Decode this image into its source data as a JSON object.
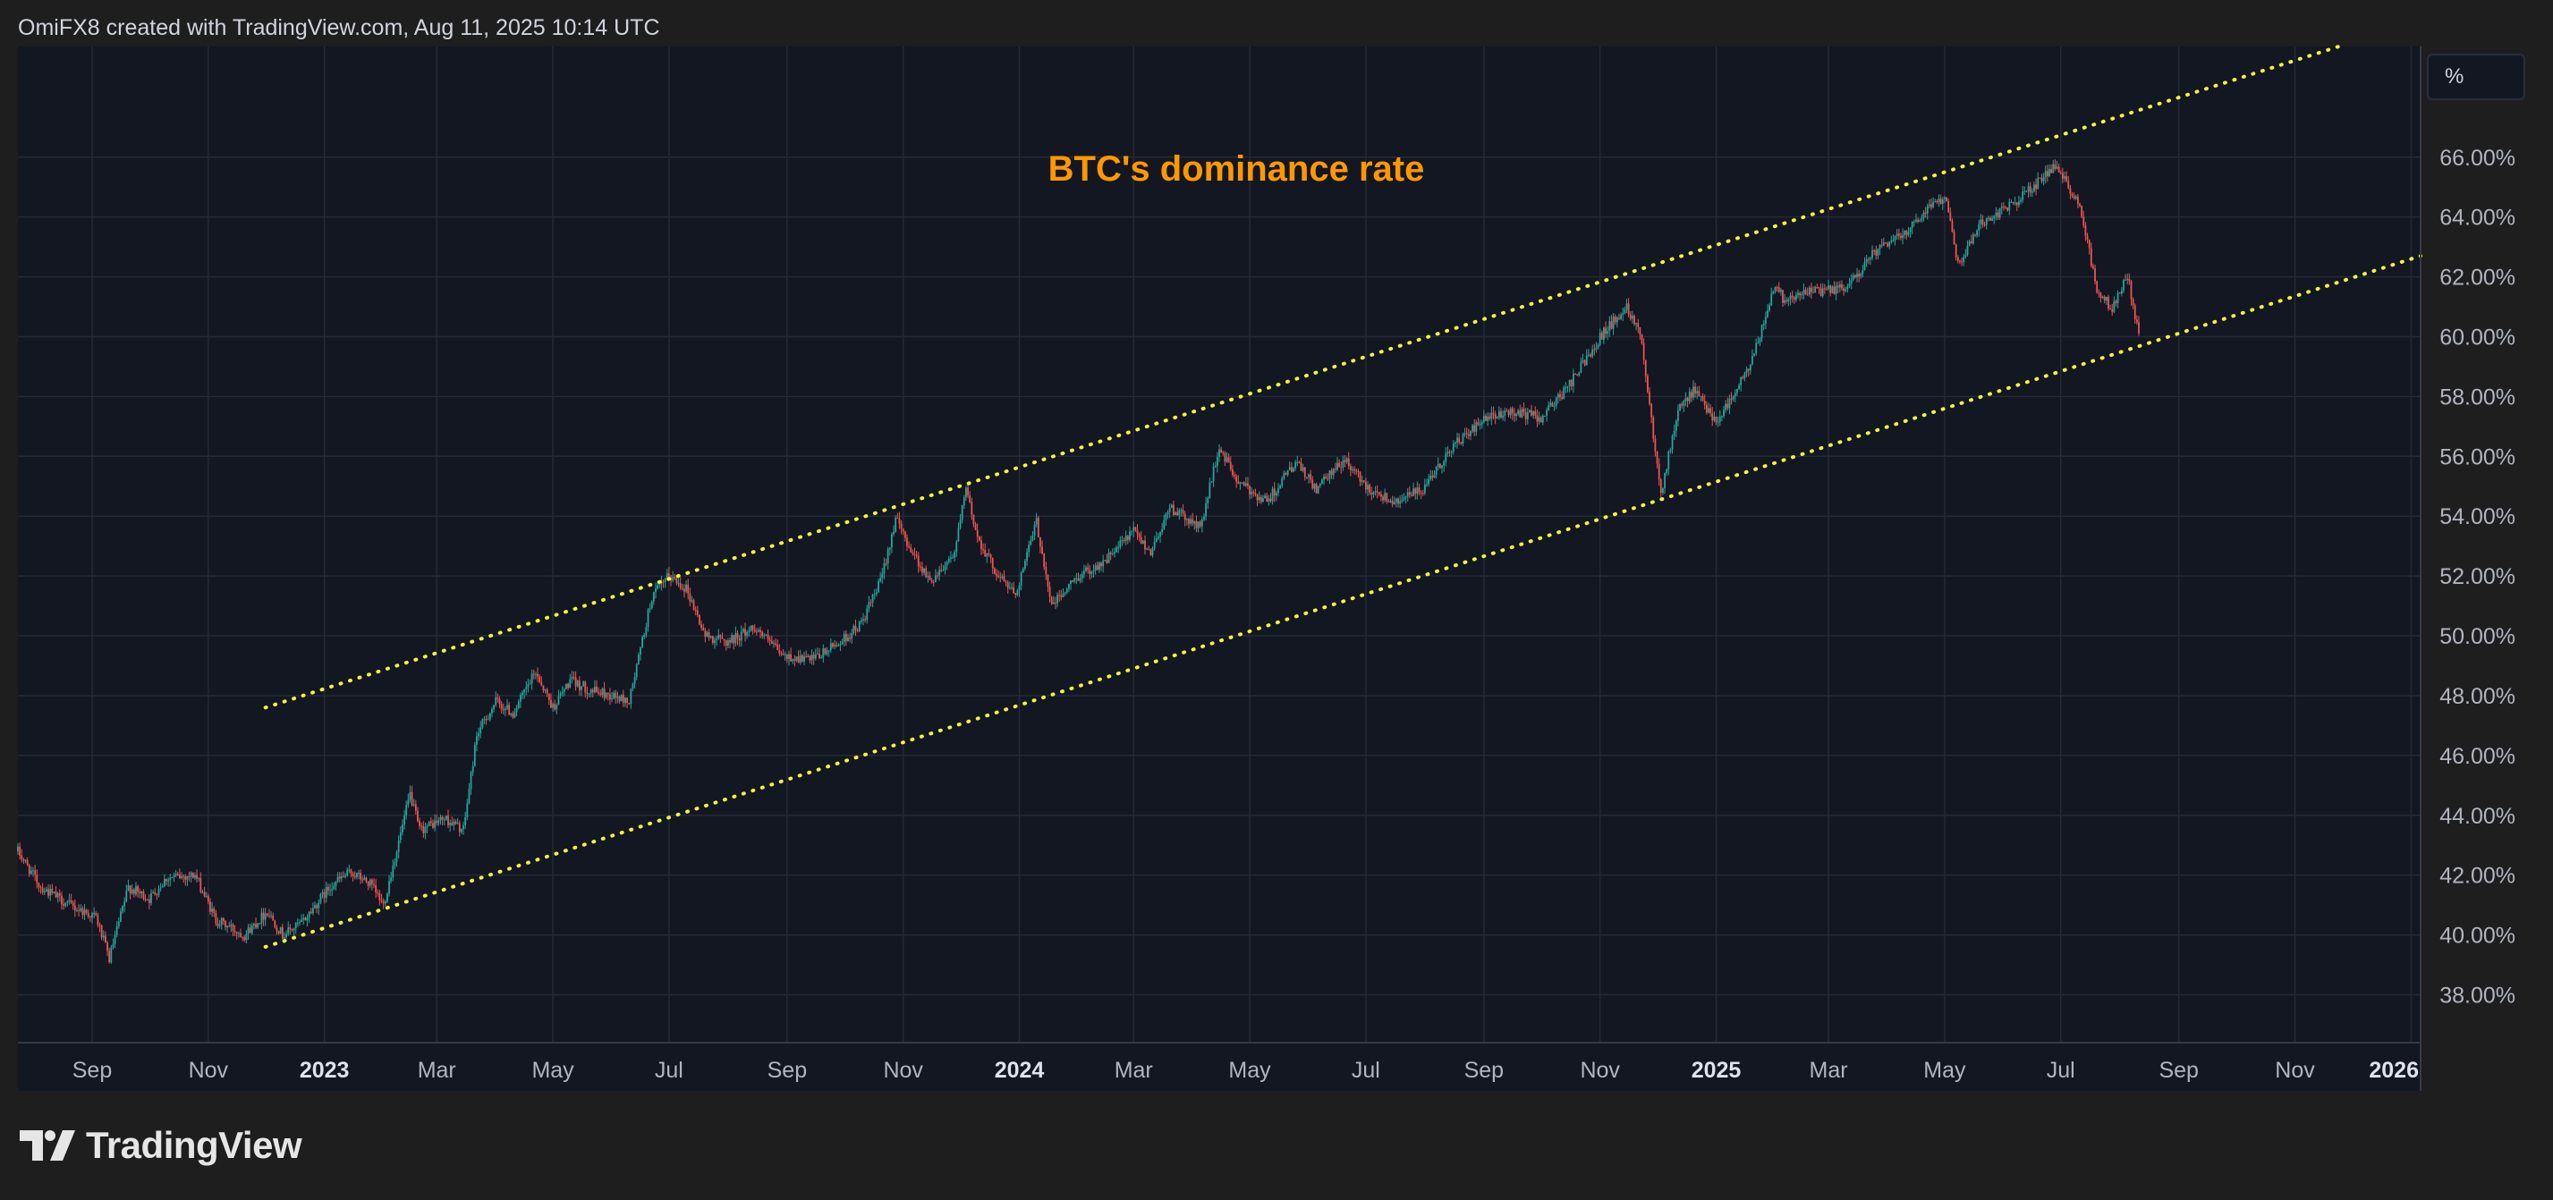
{
  "header": {
    "attribution": "OmiFX8 created with TradingView.com, Aug 11, 2025 10:14 UTC"
  },
  "toolbar": {
    "unit_label": "%"
  },
  "brand": {
    "name": "TradingView",
    "logo_icon": "tradingview-logo-icon"
  },
  "colors": {
    "background": "#1e1e1f",
    "plot_background": "#131722",
    "grid": "#252a36",
    "axis_text": "#b2b5be",
    "title": "#ff9800",
    "bullish_candle": "#26a69a",
    "bearish_candle": "#ef5350",
    "trendline": "#f5f53b"
  },
  "chart_data": {
    "type": "candlestick",
    "title": "BTC's dominance rate",
    "xlabel": "",
    "ylabel": "",
    "y_scale": "linear",
    "y_unit": "%",
    "ylim": [
      36.4,
      69.7
    ],
    "xlim": [
      "2022-07-24",
      "2026-01-06"
    ],
    "grid": true,
    "y_ticks": [
      "38.00%",
      "40.00%",
      "42.00%",
      "44.00%",
      "46.00%",
      "48.00%",
      "50.00%",
      "52.00%",
      "54.00%",
      "56.00%",
      "58.00%",
      "60.00%",
      "62.00%",
      "64.00%",
      "66.00%"
    ],
    "y_tick_values": [
      38,
      40,
      42,
      44,
      46,
      48,
      50,
      52,
      54,
      56,
      58,
      60,
      62,
      64,
      66
    ],
    "x_ticks": [
      {
        "label": "Sep",
        "date": "2022-09-01",
        "major": false
      },
      {
        "label": "Nov",
        "date": "2022-11-01",
        "major": false
      },
      {
        "label": "2023",
        "date": "2023-01-01",
        "major": true
      },
      {
        "label": "Mar",
        "date": "2023-03-01",
        "major": false
      },
      {
        "label": "May",
        "date": "2023-05-01",
        "major": false
      },
      {
        "label": "Jul",
        "date": "2023-07-01",
        "major": false
      },
      {
        "label": "Sep",
        "date": "2023-09-01",
        "major": false
      },
      {
        "label": "Nov",
        "date": "2023-11-01",
        "major": false
      },
      {
        "label": "2024",
        "date": "2024-01-01",
        "major": true
      },
      {
        "label": "Mar",
        "date": "2024-03-01",
        "major": false
      },
      {
        "label": "May",
        "date": "2024-05-01",
        "major": false
      },
      {
        "label": "Jul",
        "date": "2024-07-01",
        "major": false
      },
      {
        "label": "Sep",
        "date": "2024-09-01",
        "major": false
      },
      {
        "label": "Nov",
        "date": "2024-11-01",
        "major": false
      },
      {
        "label": "2025",
        "date": "2025-01-01",
        "major": true
      },
      {
        "label": "Mar",
        "date": "2025-03-01",
        "major": false
      },
      {
        "label": "May",
        "date": "2025-05-01",
        "major": false
      },
      {
        "label": "Jul",
        "date": "2025-07-01",
        "major": false
      },
      {
        "label": "Sep",
        "date": "2025-09-01",
        "major": false
      },
      {
        "label": "Nov",
        "date": "2025-11-01",
        "major": false
      },
      {
        "label": "2026",
        "date": "2026-01-01",
        "major": true
      }
    ],
    "price_path": [
      [
        "2022-07-24",
        42.8
      ],
      [
        "2022-08-05",
        41.6
      ],
      [
        "2022-08-20",
        41.0
      ],
      [
        "2022-09-03",
        40.6
      ],
      [
        "2022-09-10",
        39.2
      ],
      [
        "2022-09-20",
        41.6
      ],
      [
        "2022-10-01",
        41.2
      ],
      [
        "2022-10-10",
        41.9
      ],
      [
        "2022-10-25",
        42.0
      ],
      [
        "2022-11-05",
        40.5
      ],
      [
        "2022-11-20",
        40.0
      ],
      [
        "2022-12-02",
        40.8
      ],
      [
        "2022-12-10",
        40.0
      ],
      [
        "2022-12-20",
        40.4
      ],
      [
        "2023-01-05",
        41.7
      ],
      [
        "2023-01-15",
        42.1
      ],
      [
        "2023-01-25",
        41.7
      ],
      [
        "2023-02-01",
        41.0
      ],
      [
        "2023-02-15",
        44.7
      ],
      [
        "2023-02-20",
        43.5
      ],
      [
        "2023-03-05",
        43.9
      ],
      [
        "2023-03-15",
        43.5
      ],
      [
        "2023-03-22",
        46.7
      ],
      [
        "2023-04-01",
        47.8
      ],
      [
        "2023-04-10",
        47.4
      ],
      [
        "2023-04-22",
        48.8
      ],
      [
        "2023-05-01",
        47.6
      ],
      [
        "2023-05-10",
        48.5
      ],
      [
        "2023-05-20",
        48.2
      ],
      [
        "2023-06-01",
        48.0
      ],
      [
        "2023-06-10",
        47.8
      ],
      [
        "2023-06-22",
        51.3
      ],
      [
        "2023-07-01",
        52.0
      ],
      [
        "2023-07-10",
        51.6
      ],
      [
        "2023-07-20",
        50.0
      ],
      [
        "2023-08-01",
        49.8
      ],
      [
        "2023-08-15",
        50.3
      ],
      [
        "2023-08-30",
        49.3
      ],
      [
        "2023-09-15",
        49.2
      ],
      [
        "2023-10-01",
        49.9
      ],
      [
        "2023-10-10",
        50.4
      ],
      [
        "2023-10-20",
        51.8
      ],
      [
        "2023-10-28",
        53.9
      ],
      [
        "2023-11-05",
        52.9
      ],
      [
        "2023-11-15",
        51.8
      ],
      [
        "2023-11-28",
        52.8
      ],
      [
        "2023-12-04",
        54.9
      ],
      [
        "2023-12-10",
        53.3
      ],
      [
        "2023-12-20",
        52.1
      ],
      [
        "2023-12-30",
        51.4
      ],
      [
        "2024-01-10",
        53.8
      ],
      [
        "2024-01-18",
        51.0
      ],
      [
        "2024-02-01",
        52.0
      ],
      [
        "2024-02-15",
        52.5
      ],
      [
        "2024-03-01",
        53.5
      ],
      [
        "2024-03-10",
        52.8
      ],
      [
        "2024-03-20",
        54.3
      ],
      [
        "2024-04-05",
        53.6
      ],
      [
        "2024-04-15",
        56.3
      ],
      [
        "2024-04-25",
        55.1
      ],
      [
        "2024-05-10",
        54.5
      ],
      [
        "2024-05-25",
        55.8
      ],
      [
        "2024-06-05",
        54.9
      ],
      [
        "2024-06-20",
        55.9
      ],
      [
        "2024-07-01",
        55.0
      ],
      [
        "2024-07-15",
        54.5
      ],
      [
        "2024-08-01",
        54.9
      ],
      [
        "2024-08-15",
        56.3
      ],
      [
        "2024-09-01",
        57.2
      ],
      [
        "2024-09-15",
        57.5
      ],
      [
        "2024-10-01",
        57.3
      ],
      [
        "2024-10-15",
        58.3
      ],
      [
        "2024-11-01",
        60.0
      ],
      [
        "2024-11-15",
        61.0
      ],
      [
        "2024-11-22",
        60.2
      ],
      [
        "2024-12-03",
        54.8
      ],
      [
        "2024-12-12",
        57.5
      ],
      [
        "2024-12-20",
        58.2
      ],
      [
        "2025-01-01",
        57.2
      ],
      [
        "2025-01-10",
        58.0
      ],
      [
        "2025-01-20",
        59.2
      ],
      [
        "2025-02-01",
        61.8
      ],
      [
        "2025-02-05",
        61.3
      ],
      [
        "2025-02-20",
        61.5
      ],
      [
        "2025-03-10",
        61.6
      ],
      [
        "2025-03-25",
        62.8
      ],
      [
        "2025-04-10",
        63.5
      ],
      [
        "2025-04-25",
        64.5
      ],
      [
        "2025-05-02",
        64.7
      ],
      [
        "2025-05-08",
        62.4
      ],
      [
        "2025-05-20",
        63.8
      ],
      [
        "2025-06-05",
        64.4
      ],
      [
        "2025-06-20",
        65.2
      ],
      [
        "2025-06-27",
        65.7
      ],
      [
        "2025-07-10",
        64.6
      ],
      [
        "2025-07-20",
        61.6
      ],
      [
        "2025-07-28",
        60.9
      ],
      [
        "2025-08-05",
        62.1
      ],
      [
        "2025-08-11",
        60.0
      ]
    ],
    "trendlines": [
      {
        "name": "",
        "style": "dotted",
        "start": [
          "2022-12-01",
          47.6
        ],
        "end": [
          "2025-11-24",
          69.7
        ]
      },
      {
        "name": "",
        "style": "dotted",
        "start": [
          "2022-12-01",
          39.6
        ],
        "end": [
          "2026-01-06",
          62.7
        ]
      }
    ]
  }
}
